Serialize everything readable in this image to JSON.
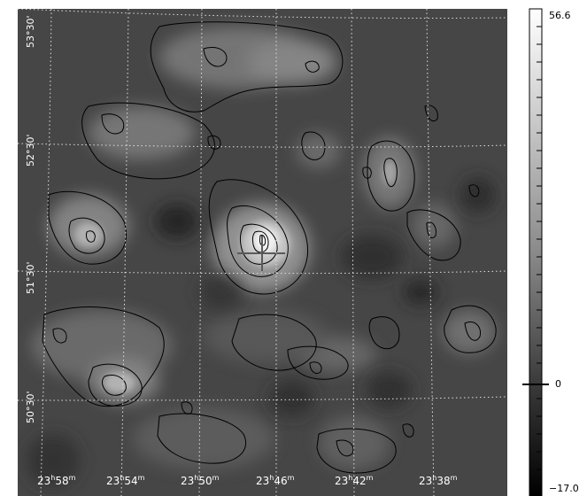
{
  "ra_labels": [
    {
      "h": "23",
      "m": "58"
    },
    {
      "h": "23",
      "m": "54"
    },
    {
      "h": "23",
      "m": "50"
    },
    {
      "h": "23",
      "m": "46"
    },
    {
      "h": "23",
      "m": "42"
    },
    {
      "h": "23",
      "m": "38"
    }
  ],
  "dec_labels": [
    "53°30'",
    "52°30'",
    "51°30'",
    "50°30'"
  ],
  "colorbar": {
    "max": "56.6",
    "zero": "0",
    "min": "−17.0"
  },
  "colors": {
    "grid": "#e0e0e0",
    "contour": "#000000",
    "cross": "#5a5a5a"
  }
}
